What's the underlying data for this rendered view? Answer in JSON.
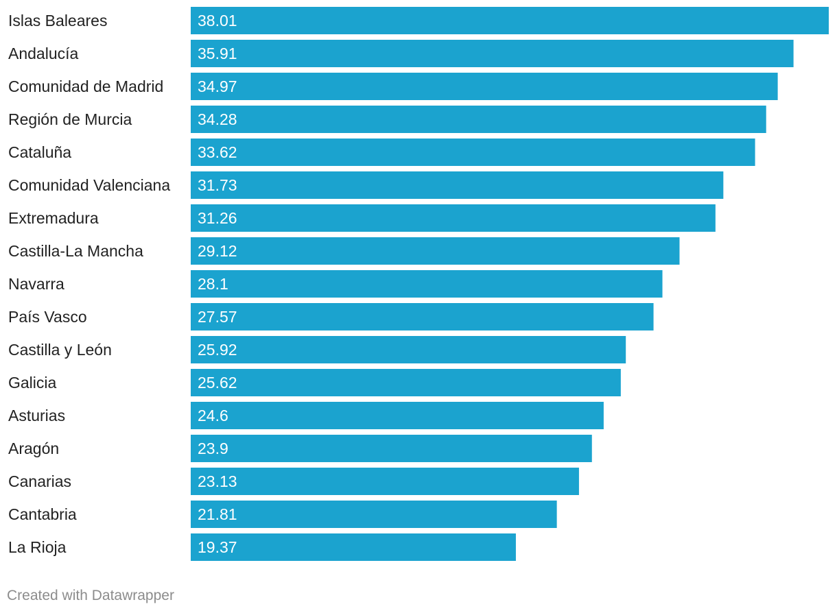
{
  "chart_data": {
    "type": "bar",
    "orientation": "horizontal",
    "categories": [
      "Islas Baleares",
      "Andalucía",
      "Comunidad de Madrid",
      "Región de Murcia",
      "Cataluña",
      "Comunidad Valenciana",
      "Extremadura",
      "Castilla-La Mancha",
      "Navarra",
      "País Vasco",
      "Castilla y León",
      "Galicia",
      "Asturias",
      "Aragón",
      "Canarias",
      "Cantabria",
      "La Rioja"
    ],
    "values": [
      38.01,
      35.91,
      34.97,
      34.28,
      33.62,
      31.73,
      31.26,
      29.12,
      28.1,
      27.57,
      25.92,
      25.62,
      24.6,
      23.9,
      23.13,
      21.81,
      19.37
    ],
    "value_labels": [
      "38.01",
      "35.91",
      "34.97",
      "34.28",
      "33.62",
      "31.73",
      "31.26",
      "29.12",
      "28.1",
      "27.57",
      "25.92",
      "25.62",
      "24.6",
      "23.9",
      "23.13",
      "21.81",
      "19.37"
    ],
    "xlim": [
      0,
      38.01
    ],
    "bar_color": "#1ba3cf",
    "label_color": "#222222",
    "value_label_color": "#ffffff",
    "grid": false,
    "title": "",
    "xlabel": "",
    "ylabel": ""
  },
  "footer": {
    "credit": "Created with Datawrapper",
    "color": "#8c8c8c"
  }
}
